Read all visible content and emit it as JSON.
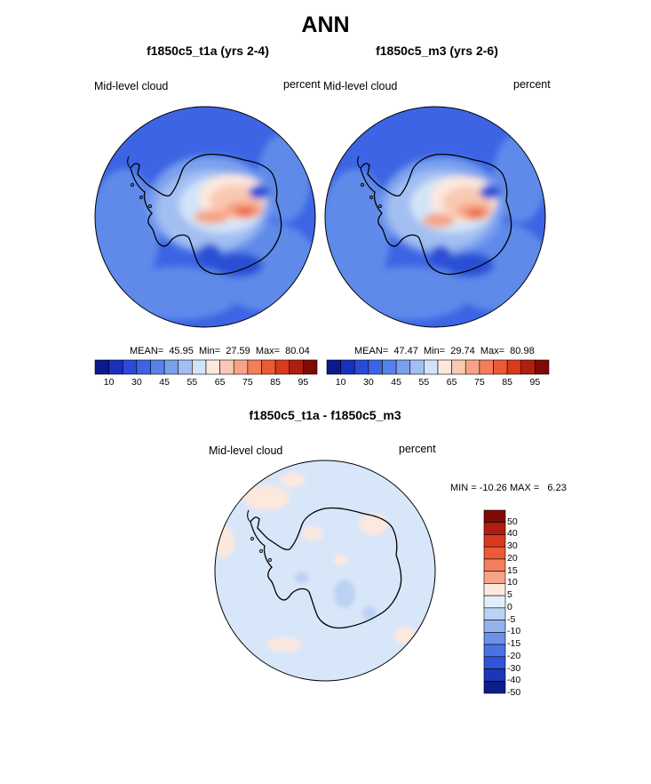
{
  "page": {
    "title": "ANN"
  },
  "panels": [
    {
      "title": "f1850c5_t1a (yrs 2-4)",
      "field_label": "Mid-level cloud",
      "units": "percent",
      "stats": {
        "mean": "45.95",
        "min": "27.59",
        "max": "80.04"
      },
      "stats_text": "MEAN=  45.95  Min=  27.59  Max=  80.04"
    },
    {
      "title": "f1850c5_m3 (yrs 2-6)",
      "field_label": "Mid-level cloud",
      "units": "percent",
      "stats": {
        "mean": "47.47",
        "min": "29.74",
        "max": "80.98"
      },
      "stats_text": "MEAN=  47.47  Min=  29.74  Max=  80.98"
    },
    {
      "title": "f1850c5_t1a - f1850c5_m3",
      "field_label": "Mid-level cloud",
      "units": "percent",
      "stats": {
        "min": "-10.26",
        "max": "6.23"
      },
      "stats_text": "MIN = -10.26 MAX =   6.23"
    }
  ],
  "colorbar_abs": {
    "colors": [
      "#0a1a8c",
      "#1a2fc0",
      "#2a4ad8",
      "#3c64e4",
      "#5683ea",
      "#7aa0ee",
      "#a3bff2",
      "#d2e4f8",
      "#fde8de",
      "#f9c9b2",
      "#f6a485",
      "#f27e5c",
      "#ec5a36",
      "#d9391c",
      "#b11d10",
      "#7f0a05"
    ],
    "tick_labels": [
      "10",
      "30",
      "45",
      "55",
      "65",
      "75",
      "85",
      "95"
    ]
  },
  "colorbar_diff": {
    "colors": [
      "#7f0a05",
      "#b11d10",
      "#d9391c",
      "#ec5a36",
      "#f27e5c",
      "#f6a485",
      "#fde8de",
      "#e3eefa",
      "#bcd2f4",
      "#93b3ee",
      "#6c92e8",
      "#4a72e2",
      "#2f55d6",
      "#1c36b8",
      "#0c1d8c"
    ],
    "tick_labels": [
      "50",
      "40",
      "30",
      "20",
      "15",
      "10",
      "5",
      "0",
      "-5",
      "-10",
      "-15",
      "-20",
      "-30",
      "-40",
      "-50"
    ]
  },
  "map_colors": {
    "c25": "#2c4fd6",
    "c35": "#3c64e4",
    "c45": "#5e8aea",
    "c50": "#7aa0ee",
    "c55": "#a3bff2",
    "c60": "#d2e4f8",
    "c65": "#fde8de",
    "c70": "#f9c9b2",
    "c75": "#f6a485",
    "c80": "#ec6a44",
    "diff_base": "#d8e6f9",
    "diff_pos": "#fde8de",
    "diff_neg": "#bcd2f4"
  }
}
